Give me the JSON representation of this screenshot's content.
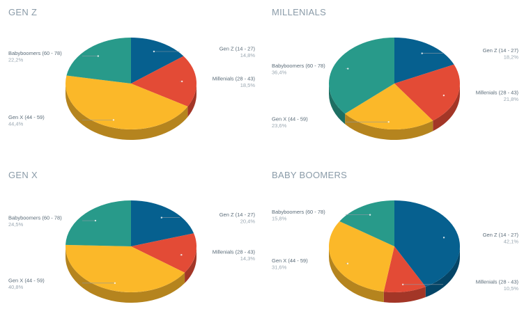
{
  "legend_colors": {
    "gen_z": "#06608f",
    "millenials": "#e34b36",
    "gen_x": "#fbb829",
    "babyboomers": "#289a8a"
  },
  "chart_data": [
    {
      "type": "pie",
      "style": "3d",
      "title": "GEN Z",
      "slices": [
        {
          "key": "gen_z",
          "label": "Gen Z (14 - 27)",
          "value": 14.8,
          "display": "14,8%"
        },
        {
          "key": "millenials",
          "label": "Millenials (28 - 43)",
          "value": 18.5,
          "display": "18,5%"
        },
        {
          "key": "gen_x",
          "label": "Gen X (44 - 59)",
          "value": 44.4,
          "display": "44,4%"
        },
        {
          "key": "babyboomers",
          "label": "Babyboomers (60 - 78)",
          "value": 22.2,
          "display": "22,2%"
        }
      ]
    },
    {
      "type": "pie",
      "style": "3d",
      "title": "MILLENIALS",
      "slices": [
        {
          "key": "gen_z",
          "label": "Gen Z (14 - 27)",
          "value": 18.2,
          "display": "18,2%"
        },
        {
          "key": "millenials",
          "label": "Millenials (28 - 43)",
          "value": 21.8,
          "display": "21,8%"
        },
        {
          "key": "gen_x",
          "label": "Gen X (44 - 59)",
          "value": 23.6,
          "display": "23,6%"
        },
        {
          "key": "babyboomers",
          "label": "Babyboomers (60 - 78)",
          "value": 36.4,
          "display": "36,4%"
        }
      ]
    },
    {
      "type": "pie",
      "style": "3d",
      "title": "GEN X",
      "slices": [
        {
          "key": "gen_z",
          "label": "Gen Z (14 - 27)",
          "value": 20.4,
          "display": "20,4%"
        },
        {
          "key": "millenials",
          "label": "Millenials (28 - 43)",
          "value": 14.3,
          "display": "14,3%"
        },
        {
          "key": "gen_x",
          "label": "Gen X (44 - 59)",
          "value": 40.8,
          "display": "40,8%"
        },
        {
          "key": "babyboomers",
          "label": "Babyboomers (60 - 78)",
          "value": 24.5,
          "display": "24,5%"
        }
      ]
    },
    {
      "type": "pie",
      "style": "3d",
      "title": "BABY BOOMERS",
      "slices": [
        {
          "key": "gen_z",
          "label": "Gen Z (14 - 27)",
          "value": 42.1,
          "display": "42,1%"
        },
        {
          "key": "millenials",
          "label": "Millenials (28 - 43)",
          "value": 10.5,
          "display": "10,5%"
        },
        {
          "key": "gen_x",
          "label": "Gen X (44 - 59)",
          "value": 31.6,
          "display": "31,6%"
        },
        {
          "key": "babyboomers",
          "label": "Babyboomers (60 - 78)",
          "value": 15.8,
          "display": "15,8%"
        }
      ]
    }
  ]
}
